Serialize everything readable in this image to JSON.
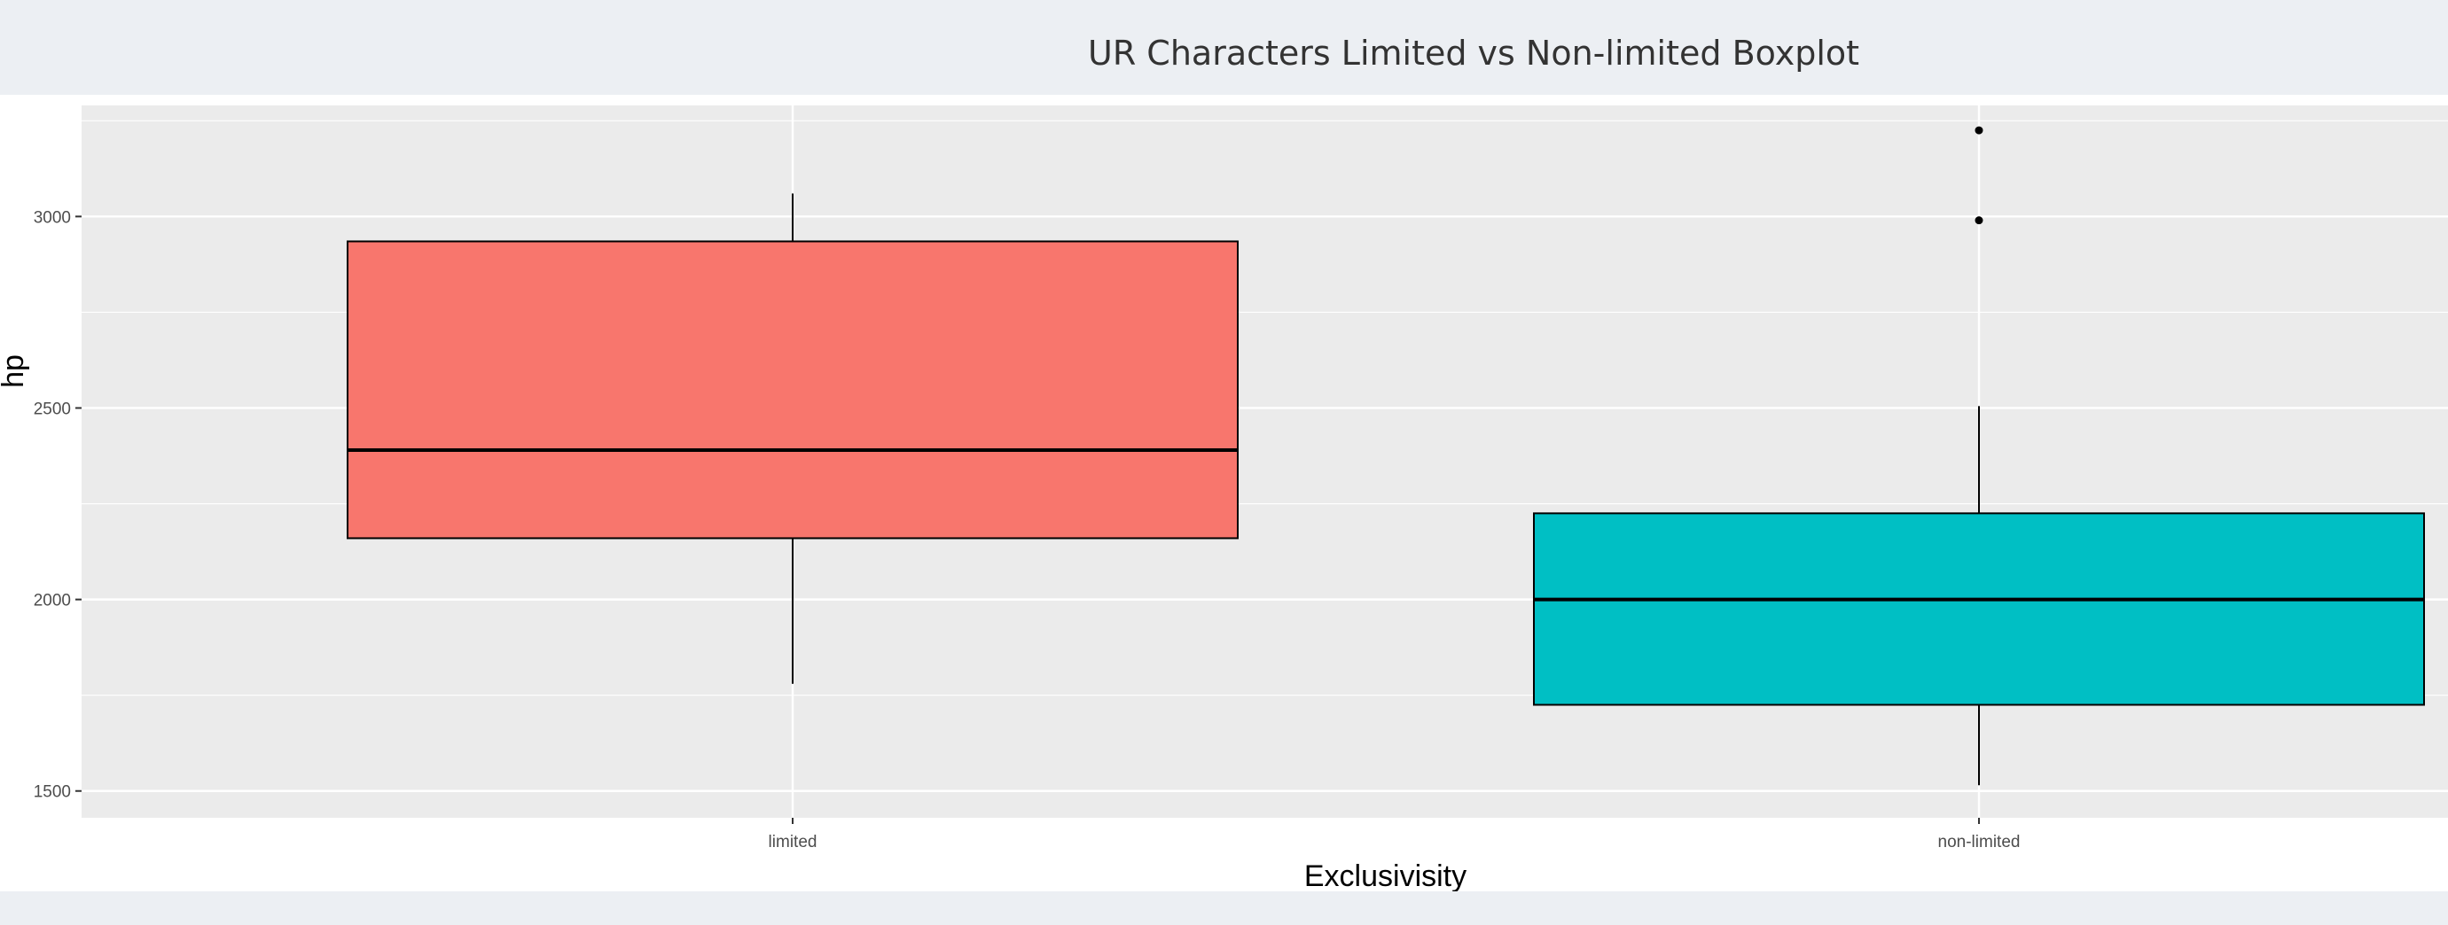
{
  "page": {
    "title": "UR Characters Limited vs Non-limited Boxplot"
  },
  "chart_data": {
    "type": "boxplot",
    "title": "UR Characters Limited vs Non-limited Boxplot",
    "xlabel": "Exclusivisity",
    "ylabel": "hp",
    "categories": [
      "limited",
      "non-limited"
    ],
    "ylim": [
      1430,
      3290
    ],
    "yticks": [
      1500,
      2000,
      2500,
      3000
    ],
    "ytick_labels": [
      "1500",
      "2000",
      "2500",
      "3000"
    ],
    "grid": true,
    "legend": "none",
    "boxes": [
      {
        "category": "limited",
        "whisker_low": 1780,
        "q1": 2160,
        "median": 2390,
        "q3": 2935,
        "whisker_high": 3060,
        "outliers": [],
        "color": "#f8766d"
      },
      {
        "category": "non-limited",
        "whisker_low": 1515,
        "q1": 1725,
        "median": 2000,
        "q3": 2225,
        "whisker_high": 2505,
        "outliers": [
          2990,
          3225
        ],
        "color": "#00bfc4"
      }
    ],
    "panel_color": "#ebebeb",
    "grid_color": "#ffffff"
  }
}
